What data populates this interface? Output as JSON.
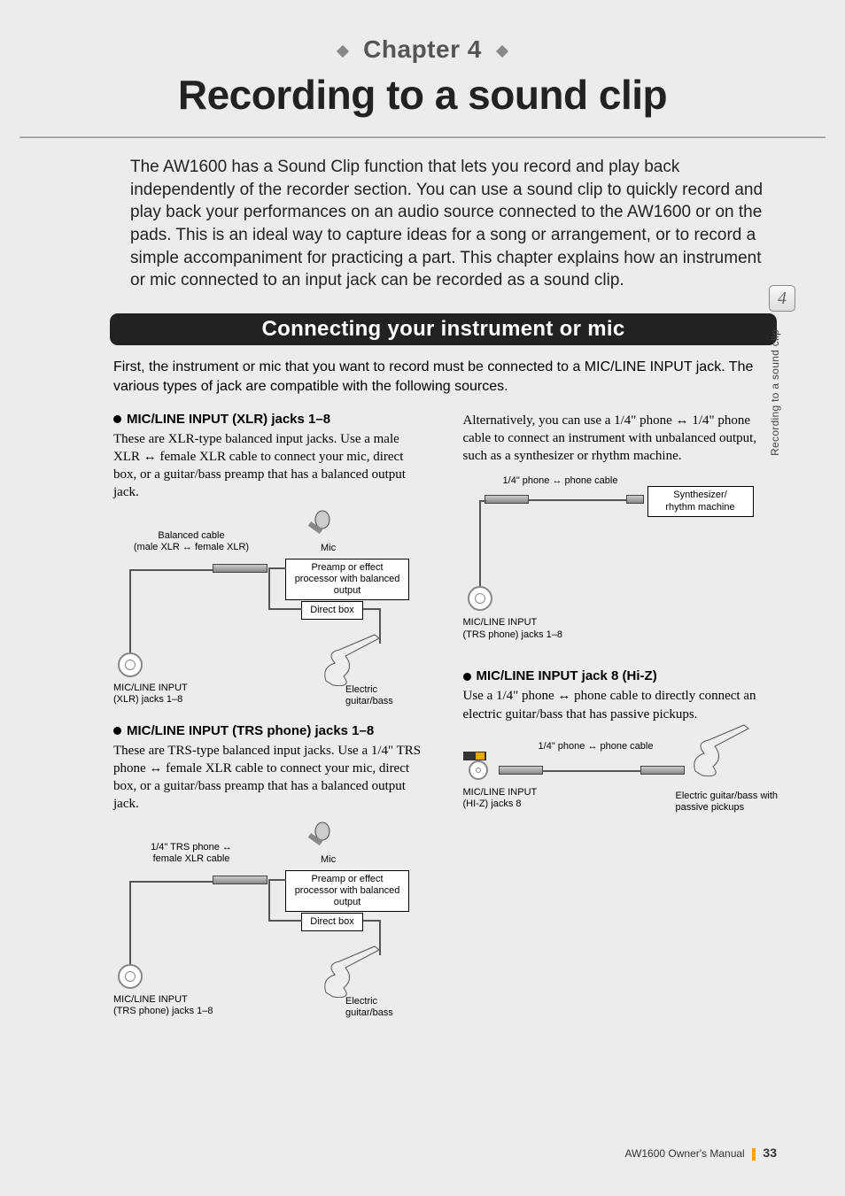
{
  "chapter_label": "Chapter 4",
  "main_title": "Recording to a sound clip",
  "intro": "The AW1600 has a Sound Clip function that lets you record and play back independently of the recorder section. You can use a sound clip to quickly record and play back your performances on an audio source connected to the AW1600 or on the pads. This is an ideal way to capture ideas for a song or arrangement, or to record a simple accompaniment for practicing a part. This chapter explains how an instrument or mic connected to an input jack can be recorded as a sound clip.",
  "section_title": "Connecting your instrument or mic",
  "section_intro": "First, the instrument or mic that you want to record must be connected to a MIC/LINE INPUT jack. The various types of jack are compatible with the following sources.",
  "left": {
    "xlr": {
      "heading": "MIC/LINE INPUT (XLR) jacks 1–8",
      "body": "These are XLR-type balanced input jacks. Use a male XLR ↔ female XLR cable to connect your mic, direct box, or a guitar/bass preamp that has a balanced output jack.",
      "cable_label": "Balanced cable\n(male XLR ↔ female XLR)",
      "mic_label": "Mic",
      "preamp_label": "Preamp or effect processor with balanced output",
      "direct_box_label": "Direct box",
      "guitar_label": "Electric\nguitar/bass",
      "jack_label": "MIC/LINE INPUT\n(XLR) jacks 1–8"
    },
    "trs": {
      "heading": "MIC/LINE INPUT (TRS phone) jacks 1–8",
      "body": "These are TRS-type balanced input jacks. Use a 1/4\" TRS phone ↔ female XLR cable to connect your mic, direct box, or a guitar/bass preamp that has a balanced output jack.",
      "cable_label": "1/4\" TRS phone ↔\nfemale XLR cable",
      "mic_label": "Mic",
      "preamp_label": "Preamp or effect processor with balanced output",
      "direct_box_label": "Direct box",
      "guitar_label": "Electric\nguitar/bass",
      "jack_label": "MIC/LINE INPUT\n(TRS phone) jacks 1–8"
    }
  },
  "right": {
    "unbalanced": {
      "body": "Alternatively, you can use a 1/4\" phone ↔ 1/4\" phone cable to connect an instrument with unbalanced output, such as a synthesizer or rhythm machine.",
      "cable_label": "1/4\" phone ↔ phone cable",
      "synth_label": "Synthesizer/\nrhythm machine",
      "jack_label": "MIC/LINE INPUT\n(TRS phone) jacks 1–8"
    },
    "hiz": {
      "heading": "MIC/LINE INPUT jack 8 (Hi-Z)",
      "body": "Use a 1/4\" phone ↔ phone cable to directly connect an electric guitar/bass that has passive pickups.",
      "cable_label": "1/4\" phone ↔ phone cable",
      "guitar_label": "Electric guitar/bass with\npassive pickups",
      "jack_label": "MIC/LINE INPUT\n(HI-Z) jacks 8"
    }
  },
  "sidebar_num": "4",
  "sidebar_text": "Recording to a sound clip",
  "footer_text": "AW1600  Owner's Manual",
  "page_number": "33",
  "colors": {
    "accent": "#f7a600",
    "bg": "#ececec"
  }
}
